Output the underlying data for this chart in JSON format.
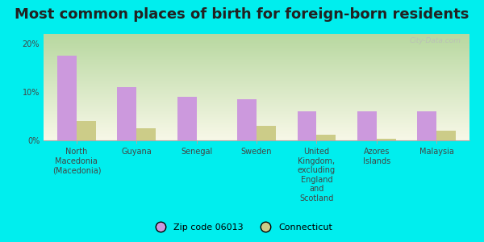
{
  "title": "Most common places of birth for foreign-born residents",
  "categories": [
    "North\nMacedonia\n(Macedonia)",
    "Guyana",
    "Senegal",
    "Sweden",
    "United\nKingdom,\nexcluding\nEngland\nand\nScotland",
    "Azores\nIslands",
    "Malaysia"
  ],
  "zip_values": [
    17.5,
    11.0,
    9.0,
    8.5,
    6.0,
    6.0,
    6.0
  ],
  "ct_values": [
    4.0,
    2.5,
    0.0,
    3.0,
    1.2,
    0.3,
    2.0
  ],
  "zip_color": "#cc99dd",
  "ct_color": "#cccc88",
  "background_color": "#00eeee",
  "grad_color_topleft": "#b8d8a0",
  "grad_color_bottomright": "#f8f8e8",
  "ylim": [
    0,
    22
  ],
  "yticks": [
    0,
    10,
    20
  ],
  "ytick_labels": [
    "0%",
    "10%",
    "20%"
  ],
  "legend_zip_label": "Zip code 06013",
  "legend_ct_label": "Connecticut",
  "watermark": "City-Data.com",
  "title_fontsize": 13,
  "tick_fontsize": 7,
  "legend_fontsize": 8,
  "bar_width": 0.32
}
